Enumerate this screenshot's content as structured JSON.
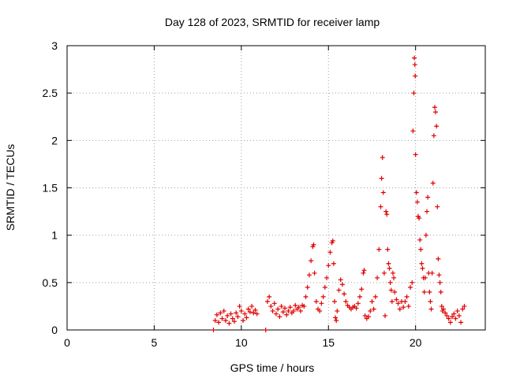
{
  "chart_data": {
    "type": "scatter",
    "title": "Day 128 of 2023, SRMTID for receiver lamp",
    "xlabel": "GPS time / hours",
    "ylabel": "SRMTID / TECUs",
    "xlim": [
      0,
      24
    ],
    "ylim": [
      0,
      3
    ],
    "x_ticks": [
      0,
      5,
      10,
      15,
      20
    ],
    "x_tick_labels": [
      "0",
      "5",
      "10",
      "15",
      "20"
    ],
    "y_ticks": [
      0,
      0.5,
      1,
      1.5,
      2,
      2.5,
      3
    ],
    "y_tick_labels": [
      "0",
      "0.5",
      "1",
      "1.5",
      "2",
      "2.5",
      "3"
    ],
    "grid": true,
    "marker": "plus",
    "colors": {
      "series": "#e00000",
      "grid": "#a0a0a0",
      "axis": "#000000"
    },
    "series": [
      {
        "name": "SRMTID",
        "points": [
          [
            8.4,
            0.0
          ],
          [
            11.4,
            0.0
          ],
          [
            8.5,
            0.1
          ],
          [
            8.6,
            0.16
          ],
          [
            8.7,
            0.08
          ],
          [
            8.8,
            0.18
          ],
          [
            8.9,
            0.12
          ],
          [
            9.0,
            0.2
          ],
          [
            9.1,
            0.1
          ],
          [
            9.2,
            0.15
          ],
          [
            9.3,
            0.07
          ],
          [
            9.4,
            0.17
          ],
          [
            9.5,
            0.12
          ],
          [
            9.6,
            0.09
          ],
          [
            9.7,
            0.18
          ],
          [
            9.8,
            0.14
          ],
          [
            9.9,
            0.25
          ],
          [
            10.0,
            0.2
          ],
          [
            10.1,
            0.1
          ],
          [
            10.2,
            0.17
          ],
          [
            10.3,
            0.13
          ],
          [
            10.4,
            0.22
          ],
          [
            10.5,
            0.19
          ],
          [
            10.6,
            0.25
          ],
          [
            10.7,
            0.18
          ],
          [
            10.8,
            0.21
          ],
          [
            10.9,
            0.17
          ],
          [
            11.5,
            0.3
          ],
          [
            11.6,
            0.35
          ],
          [
            11.7,
            0.25
          ],
          [
            11.8,
            0.2
          ],
          [
            11.9,
            0.28
          ],
          [
            12.0,
            0.17
          ],
          [
            12.1,
            0.22
          ],
          [
            12.2,
            0.14
          ],
          [
            12.3,
            0.25
          ],
          [
            12.4,
            0.19
          ],
          [
            12.5,
            0.23
          ],
          [
            12.6,
            0.16
          ],
          [
            12.7,
            0.2
          ],
          [
            12.8,
            0.24
          ],
          [
            12.9,
            0.18
          ],
          [
            13.0,
            0.2
          ],
          [
            13.1,
            0.26
          ],
          [
            13.2,
            0.22
          ],
          [
            13.3,
            0.24
          ],
          [
            13.4,
            0.2
          ],
          [
            13.5,
            0.26
          ],
          [
            13.6,
            0.25
          ],
          [
            13.7,
            0.35
          ],
          [
            13.8,
            0.45
          ],
          [
            13.9,
            0.58
          ],
          [
            14.0,
            0.73
          ],
          [
            14.1,
            0.88
          ],
          [
            14.15,
            0.9
          ],
          [
            14.2,
            0.6
          ],
          [
            14.3,
            0.3
          ],
          [
            14.4,
            0.22
          ],
          [
            14.5,
            0.2
          ],
          [
            14.6,
            0.28
          ],
          [
            14.7,
            0.35
          ],
          [
            14.8,
            0.45
          ],
          [
            14.9,
            0.55
          ],
          [
            15.0,
            0.68
          ],
          [
            15.1,
            0.82
          ],
          [
            15.2,
            0.92
          ],
          [
            15.25,
            0.94
          ],
          [
            15.3,
            0.7
          ],
          [
            15.35,
            0.3
          ],
          [
            15.4,
            0.13
          ],
          [
            15.45,
            0.1
          ],
          [
            15.5,
            0.2
          ],
          [
            15.6,
            0.42
          ],
          [
            15.7,
            0.53
          ],
          [
            15.8,
            0.48
          ],
          [
            15.9,
            0.38
          ],
          [
            16.0,
            0.3
          ],
          [
            16.1,
            0.26
          ],
          [
            16.2,
            0.24
          ],
          [
            16.3,
            0.22
          ],
          [
            16.4,
            0.24
          ],
          [
            16.5,
            0.25
          ],
          [
            16.6,
            0.23
          ],
          [
            16.7,
            0.28
          ],
          [
            16.8,
            0.35
          ],
          [
            16.9,
            0.43
          ],
          [
            17.0,
            0.6
          ],
          [
            17.05,
            0.63
          ],
          [
            17.1,
            0.15
          ],
          [
            17.2,
            0.12
          ],
          [
            17.3,
            0.14
          ],
          [
            17.4,
            0.2
          ],
          [
            17.5,
            0.3
          ],
          [
            17.6,
            0.22
          ],
          [
            17.7,
            0.35
          ],
          [
            17.8,
            0.55
          ],
          [
            17.9,
            0.85
          ],
          [
            18.0,
            1.3
          ],
          [
            18.05,
            1.6
          ],
          [
            18.1,
            1.82
          ],
          [
            18.15,
            1.45
          ],
          [
            18.2,
            0.6
          ],
          [
            18.25,
            0.15
          ],
          [
            18.3,
            1.25
          ],
          [
            18.35,
            1.22
          ],
          [
            18.4,
            0.85
          ],
          [
            18.45,
            0.7
          ],
          [
            18.5,
            0.65
          ],
          [
            18.55,
            0.5
          ],
          [
            18.6,
            0.42
          ],
          [
            18.65,
            0.3
          ],
          [
            18.7,
            0.6
          ],
          [
            18.75,
            0.55
          ],
          [
            18.8,
            0.4
          ],
          [
            18.9,
            0.32
          ],
          [
            19.0,
            0.28
          ],
          [
            19.1,
            0.22
          ],
          [
            19.2,
            0.3
          ],
          [
            19.3,
            0.24
          ],
          [
            19.4,
            0.3
          ],
          [
            19.5,
            0.35
          ],
          [
            19.6,
            0.25
          ],
          [
            19.7,
            0.45
          ],
          [
            19.8,
            0.5
          ],
          [
            19.85,
            2.1
          ],
          [
            19.9,
            2.5
          ],
          [
            19.93,
            2.87
          ],
          [
            19.96,
            2.8
          ],
          [
            19.98,
            2.68
          ],
          [
            20.0,
            1.85
          ],
          [
            20.05,
            1.45
          ],
          [
            20.1,
            1.35
          ],
          [
            20.15,
            1.2
          ],
          [
            20.2,
            1.18
          ],
          [
            20.25,
            0.95
          ],
          [
            20.3,
            0.85
          ],
          [
            20.35,
            0.7
          ],
          [
            20.4,
            0.65
          ],
          [
            20.45,
            0.55
          ],
          [
            20.5,
            0.4
          ],
          [
            20.55,
            0.55
          ],
          [
            20.6,
            1.0
          ],
          [
            20.65,
            1.25
          ],
          [
            20.7,
            1.4
          ],
          [
            20.75,
            0.6
          ],
          [
            20.8,
            0.4
          ],
          [
            20.85,
            0.3
          ],
          [
            20.9,
            0.22
          ],
          [
            20.95,
            0.6
          ],
          [
            21.0,
            1.55
          ],
          [
            21.05,
            2.05
          ],
          [
            21.1,
            2.35
          ],
          [
            21.15,
            2.3
          ],
          [
            21.2,
            2.15
          ],
          [
            21.25,
            1.3
          ],
          [
            21.3,
            0.75
          ],
          [
            21.35,
            0.58
          ],
          [
            21.4,
            0.5
          ],
          [
            21.45,
            0.4
          ],
          [
            21.5,
            0.25
          ],
          [
            21.55,
            0.2
          ],
          [
            21.6,
            0.22
          ],
          [
            21.7,
            0.18
          ],
          [
            21.8,
            0.15
          ],
          [
            21.9,
            0.12
          ],
          [
            22.0,
            0.08
          ],
          [
            22.1,
            0.14
          ],
          [
            22.2,
            0.17
          ],
          [
            22.3,
            0.12
          ],
          [
            22.4,
            0.2
          ],
          [
            22.5,
            0.15
          ],
          [
            22.6,
            0.08
          ],
          [
            22.7,
            0.22
          ],
          [
            22.8,
            0.25
          ]
        ]
      }
    ]
  }
}
